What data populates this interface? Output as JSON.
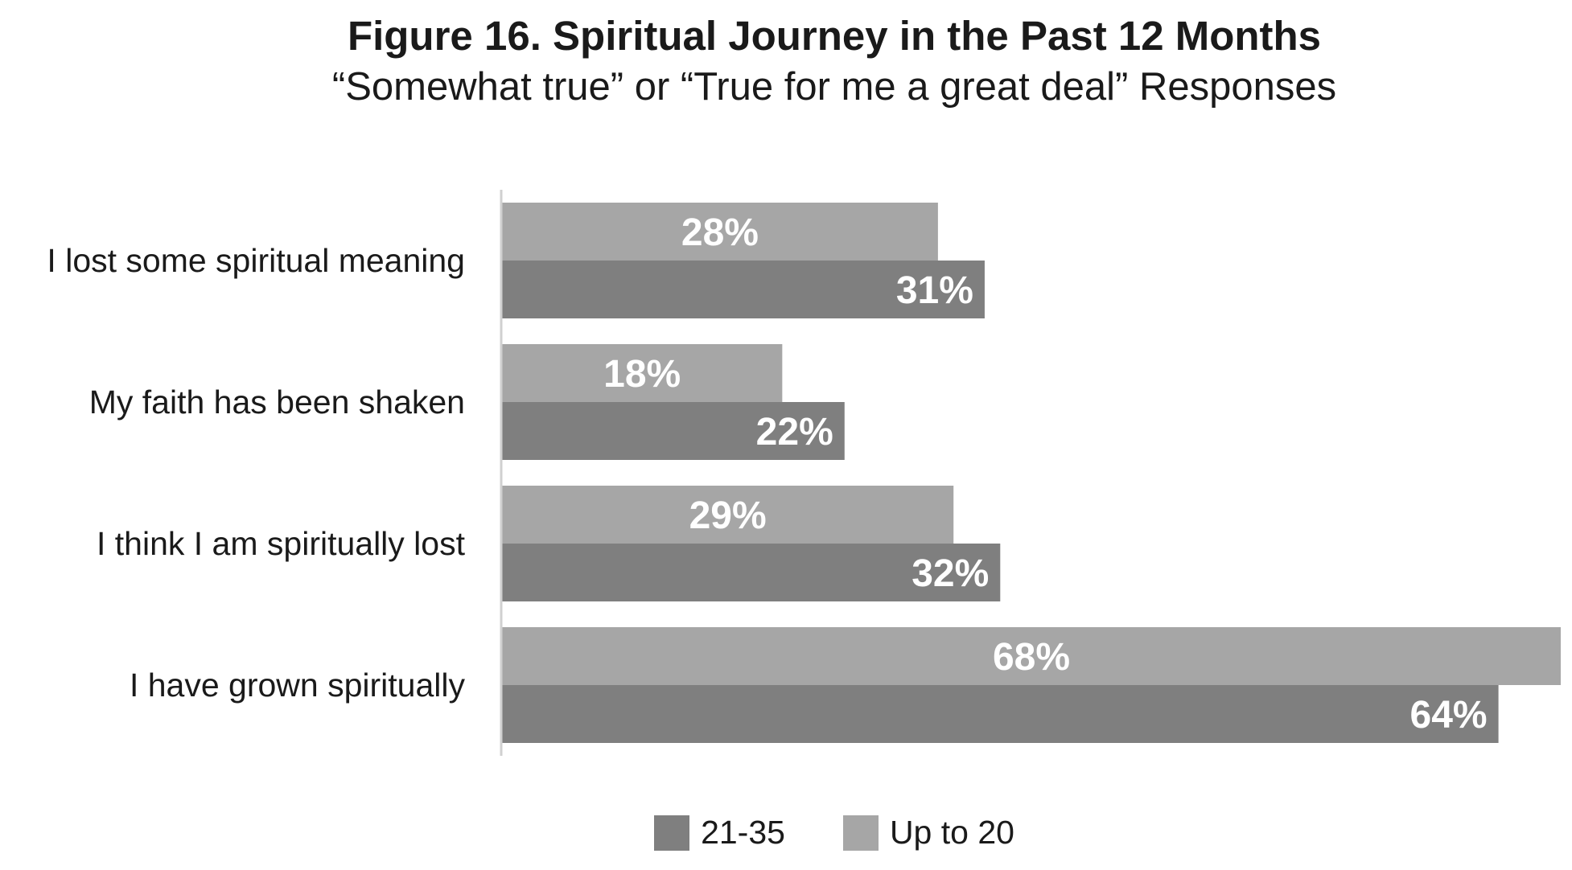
{
  "chart_data": {
    "type": "bar",
    "orientation": "horizontal",
    "title": "Figure 16. Spiritual Journey in the Past 12 Months",
    "subtitle": "“Somewhat true” or “True for me a great deal” Responses",
    "categories": [
      "I lost some spiritual meaning",
      "My faith has been shaken",
      "I think I am spiritually lost",
      "I have grown spiritually"
    ],
    "series": [
      {
        "name": "Up to 20",
        "color": "#a6a6a6",
        "values": [
          28,
          18,
          29,
          68
        ],
        "labels": [
          "28%",
          "18%",
          "29%",
          "68%"
        ]
      },
      {
        "name": "21-35",
        "color": "#7f7f7f",
        "values": [
          31,
          22,
          32,
          64
        ],
        "labels": [
          "31%",
          "22%",
          "32%",
          "64%"
        ]
      }
    ],
    "xlim": [
      0,
      68
    ],
    "grid": false,
    "legend_position": "bottom",
    "legend_order": [
      "21-35",
      "Up to 20"
    ]
  }
}
